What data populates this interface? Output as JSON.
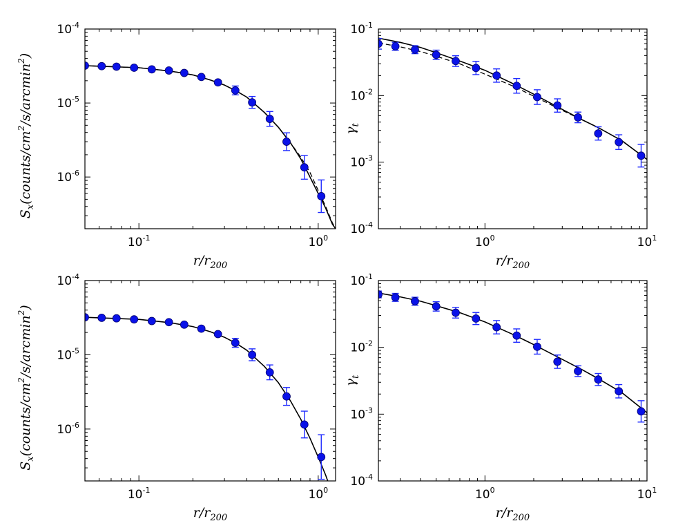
{
  "colors": {
    "points": "#0a12e8",
    "errorbars": "#1f2bff",
    "model": "#000000"
  },
  "chart_data": [
    {
      "type": "scatter",
      "panel": "top-left",
      "xlabel": "r/r_200",
      "ylabel": "S_x(counts/cm^2/s/arcmin^2)",
      "xscale": "log",
      "yscale": "log",
      "xlim": [
        0.05,
        1.25
      ],
      "ylim": [
        2e-07,
        0.0001
      ],
      "xticks": [
        {
          "v": 0.1,
          "b": "10",
          "e": "-1"
        },
        {
          "v": 1,
          "b": "10",
          "e": "0"
        }
      ],
      "yticks": [
        {
          "v": 1e-06,
          "b": "10",
          "e": "-6"
        },
        {
          "v": 1e-05,
          "b": "10",
          "e": "-5"
        },
        {
          "v": 0.0001,
          "b": "10",
          "e": "-4"
        }
      ],
      "points": [
        {
          "x": 0.05,
          "y": 3.2e-05,
          "err": 0
        },
        {
          "x": 0.062,
          "y": 3.15e-05,
          "err": 0
        },
        {
          "x": 0.075,
          "y": 3.1e-05,
          "err": 0
        },
        {
          "x": 0.094,
          "y": 3e-05,
          "err": 0
        },
        {
          "x": 0.118,
          "y": 2.85e-05,
          "err": 0
        },
        {
          "x": 0.147,
          "y": 2.75e-05,
          "err": 0
        },
        {
          "x": 0.179,
          "y": 2.55e-05,
          "err": 0
        },
        {
          "x": 0.223,
          "y": 2.25e-05,
          "err": 0
        },
        {
          "x": 0.276,
          "y": 1.9e-05,
          "err": 0
        },
        {
          "x": 0.345,
          "y": 1.48e-05,
          "err": 0.06
        },
        {
          "x": 0.428,
          "y": 1.02e-05,
          "err": 0.08
        },
        {
          "x": 0.537,
          "y": 6.1e-06,
          "err": 0.1
        },
        {
          "x": 0.666,
          "y": 3e-06,
          "err": 0.12
        },
        {
          "x": 0.837,
          "y": 1.35e-06,
          "err": 0.16
        },
        {
          "x": 1.04,
          "y": 5.5e-07,
          "err": 0.22
        }
      ],
      "model_solid": [
        [
          0.05,
          3.2e-05
        ],
        [
          0.1,
          3e-05
        ],
        [
          0.15,
          2.7e-05
        ],
        [
          0.2,
          2.4e-05
        ],
        [
          0.25,
          2.05e-05
        ],
        [
          0.3,
          1.75e-05
        ],
        [
          0.35,
          1.45e-05
        ],
        [
          0.4,
          1.2e-05
        ],
        [
          0.5,
          7.5e-06
        ],
        [
          0.6,
          4.7e-06
        ],
        [
          0.7,
          2.9e-06
        ],
        [
          0.8,
          1.75e-06
        ],
        [
          0.9,
          1e-06
        ],
        [
          1.0,
          6e-07
        ],
        [
          1.1,
          3.8e-07
        ],
        [
          1.2,
          2.3e-07
        ],
        [
          1.25,
          2e-07
        ]
      ],
      "model_dashed": [
        [
          0.05,
          3.2e-05
        ],
        [
          0.1,
          3e-05
        ],
        [
          0.15,
          2.7e-05
        ],
        [
          0.2,
          2.4e-05
        ],
        [
          0.25,
          2.05e-05
        ],
        [
          0.3,
          1.75e-05
        ],
        [
          0.35,
          1.45e-05
        ],
        [
          0.4,
          1.2e-05
        ],
        [
          0.5,
          7.5e-06
        ],
        [
          0.6,
          4.7e-06
        ],
        [
          0.7,
          2.9e-06
        ],
        [
          0.8,
          1.85e-06
        ],
        [
          0.9,
          1.15e-06
        ],
        [
          1.0,
          6.6e-07
        ],
        [
          1.1,
          4e-07
        ],
        [
          1.2,
          2.4e-07
        ],
        [
          1.25,
          2e-07
        ]
      ]
    },
    {
      "type": "scatter",
      "panel": "top-right",
      "xlabel": "r/r_200",
      "ylabel": "γ_t",
      "xscale": "log",
      "yscale": "log",
      "xlim": [
        0.22,
        10
      ],
      "ylim": [
        0.0001,
        0.1
      ],
      "xticks": [
        {
          "v": 1,
          "b": "10",
          "e": "0"
        },
        {
          "v": 10,
          "b": "10",
          "e": "1"
        }
      ],
      "yticks": [
        {
          "v": 0.0001,
          "b": "10",
          "e": "-4"
        },
        {
          "v": 0.001,
          "b": "10",
          "e": "-3"
        },
        {
          "v": 0.01,
          "b": "10",
          "e": "-2"
        },
        {
          "v": 0.1,
          "b": "10",
          "e": "-1"
        }
      ],
      "points": [
        {
          "x": 0.22,
          "y": 0.06,
          "err": 0.08
        },
        {
          "x": 0.28,
          "y": 0.055,
          "err": 0.06
        },
        {
          "x": 0.37,
          "y": 0.049,
          "err": 0.06
        },
        {
          "x": 0.5,
          "y": 0.041,
          "err": 0.07
        },
        {
          "x": 0.66,
          "y": 0.033,
          "err": 0.08
        },
        {
          "x": 0.88,
          "y": 0.026,
          "err": 0.1
        },
        {
          "x": 1.18,
          "y": 0.02,
          "err": 0.1
        },
        {
          "x": 1.57,
          "y": 0.014,
          "err": 0.11
        },
        {
          "x": 2.1,
          "y": 0.0095,
          "err": 0.11
        },
        {
          "x": 2.8,
          "y": 0.0071,
          "err": 0.1
        },
        {
          "x": 3.75,
          "y": 0.0047,
          "err": 0.08
        },
        {
          "x": 5.0,
          "y": 0.0027,
          "err": 0.1
        },
        {
          "x": 6.7,
          "y": 0.002,
          "err": 0.11
        },
        {
          "x": 9.2,
          "y": 0.00125,
          "err": 0.17
        }
      ],
      "model_solid": [
        [
          0.22,
          0.073
        ],
        [
          0.3,
          0.063
        ],
        [
          0.4,
          0.053
        ],
        [
          0.5,
          0.044
        ],
        [
          0.7,
          0.033
        ],
        [
          1.0,
          0.024
        ],
        [
          1.5,
          0.015
        ],
        [
          2.0,
          0.0105
        ],
        [
          3.0,
          0.0062
        ],
        [
          4.0,
          0.0043
        ],
        [
          5.0,
          0.0033
        ],
        [
          7.0,
          0.0021
        ],
        [
          10.0,
          0.0011
        ]
      ],
      "model_dashed": [
        [
          0.22,
          0.062
        ],
        [
          0.3,
          0.054
        ],
        [
          0.4,
          0.046
        ],
        [
          0.5,
          0.039
        ],
        [
          0.7,
          0.03
        ],
        [
          1.0,
          0.021
        ],
        [
          1.5,
          0.0138
        ],
        [
          2.0,
          0.0098
        ],
        [
          3.0,
          0.006
        ],
        [
          4.0,
          0.0043
        ],
        [
          5.0,
          0.0033
        ],
        [
          7.0,
          0.0021
        ],
        [
          10.0,
          0.0011
        ]
      ]
    },
    {
      "type": "scatter",
      "panel": "bottom-left",
      "xlabel": "r/r_200",
      "ylabel": "S_x(counts/cm^2/s/arcmin^2)",
      "xscale": "log",
      "yscale": "log",
      "xlim": [
        0.05,
        1.25
      ],
      "ylim": [
        2e-07,
        0.0001
      ],
      "xticks": [
        {
          "v": 0.1,
          "b": "10",
          "e": "-1"
        },
        {
          "v": 1,
          "b": "10",
          "e": "0"
        }
      ],
      "yticks": [
        {
          "v": 1e-06,
          "b": "10",
          "e": "-6"
        },
        {
          "v": 1e-05,
          "b": "10",
          "e": "-5"
        },
        {
          "v": 0.0001,
          "b": "10",
          "e": "-4"
        }
      ],
      "points": [
        {
          "x": 0.05,
          "y": 3.2e-05,
          "err": 0
        },
        {
          "x": 0.062,
          "y": 3.15e-05,
          "err": 0
        },
        {
          "x": 0.075,
          "y": 3.1e-05,
          "err": 0
        },
        {
          "x": 0.094,
          "y": 3e-05,
          "err": 0
        },
        {
          "x": 0.118,
          "y": 2.85e-05,
          "err": 0
        },
        {
          "x": 0.147,
          "y": 2.75e-05,
          "err": 0
        },
        {
          "x": 0.179,
          "y": 2.55e-05,
          "err": 0
        },
        {
          "x": 0.223,
          "y": 2.25e-05,
          "err": 0
        },
        {
          "x": 0.276,
          "y": 1.9e-05,
          "err": 0
        },
        {
          "x": 0.345,
          "y": 1.45e-05,
          "err": 0.06
        },
        {
          "x": 0.428,
          "y": 1e-05,
          "err": 0.08
        },
        {
          "x": 0.537,
          "y": 5.8e-06,
          "err": 0.1
        },
        {
          "x": 0.666,
          "y": 2.75e-06,
          "err": 0.12
        },
        {
          "x": 0.837,
          "y": 1.15e-06,
          "err": 0.18
        },
        {
          "x": 1.04,
          "y": 4.2e-07,
          "err": 0.3
        }
      ],
      "model_solid": [
        [
          0.05,
          3.2e-05
        ],
        [
          0.1,
          3e-05
        ],
        [
          0.15,
          2.7e-05
        ],
        [
          0.2,
          2.4e-05
        ],
        [
          0.25,
          2.05e-05
        ],
        [
          0.3,
          1.72e-05
        ],
        [
          0.35,
          1.42e-05
        ],
        [
          0.4,
          1.15e-05
        ],
        [
          0.5,
          7e-06
        ],
        [
          0.6,
          4.2e-06
        ],
        [
          0.7,
          2.4e-06
        ],
        [
          0.8,
          1.35e-06
        ],
        [
          0.9,
          7.5e-07
        ],
        [
          1.0,
          4.2e-07
        ],
        [
          1.1,
          2.4e-07
        ],
        [
          1.13,
          2e-07
        ]
      ],
      "model_dashed": []
    },
    {
      "type": "scatter",
      "panel": "bottom-right",
      "xlabel": "r/r_200",
      "ylabel": "γ_t",
      "xscale": "log",
      "yscale": "log",
      "xlim": [
        0.22,
        10
      ],
      "ylim": [
        0.0001,
        0.1
      ],
      "xticks": [
        {
          "v": 1,
          "b": "10",
          "e": "0"
        },
        {
          "v": 10,
          "b": "10",
          "e": "1"
        }
      ],
      "yticks": [
        {
          "v": 0.0001,
          "b": "10",
          "e": "-4"
        },
        {
          "v": 0.001,
          "b": "10",
          "e": "-3"
        },
        {
          "v": 0.01,
          "b": "10",
          "e": "-2"
        },
        {
          "v": 0.1,
          "b": "10",
          "e": "-1"
        }
      ],
      "points": [
        {
          "x": 0.22,
          "y": 0.062,
          "err": 0.05
        },
        {
          "x": 0.28,
          "y": 0.056,
          "err": 0.06
        },
        {
          "x": 0.37,
          "y": 0.049,
          "err": 0.06
        },
        {
          "x": 0.5,
          "y": 0.041,
          "err": 0.07
        },
        {
          "x": 0.66,
          "y": 0.033,
          "err": 0.08
        },
        {
          "x": 0.88,
          "y": 0.027,
          "err": 0.09
        },
        {
          "x": 1.18,
          "y": 0.02,
          "err": 0.1
        },
        {
          "x": 1.57,
          "y": 0.015,
          "err": 0.1
        },
        {
          "x": 2.1,
          "y": 0.0102,
          "err": 0.11
        },
        {
          "x": 2.8,
          "y": 0.0061,
          "err": 0.1
        },
        {
          "x": 3.75,
          "y": 0.0044,
          "err": 0.08
        },
        {
          "x": 5.0,
          "y": 0.0033,
          "err": 0.09
        },
        {
          "x": 6.7,
          "y": 0.0022,
          "err": 0.1
        },
        {
          "x": 9.2,
          "y": 0.0011,
          "err": 0.16
        }
      ],
      "model_solid": [
        [
          0.22,
          0.065
        ],
        [
          0.3,
          0.057
        ],
        [
          0.4,
          0.049
        ],
        [
          0.5,
          0.042
        ],
        [
          0.7,
          0.033
        ],
        [
          1.0,
          0.024
        ],
        [
          1.5,
          0.0155
        ],
        [
          2.0,
          0.011
        ],
        [
          3.0,
          0.0066
        ],
        [
          4.0,
          0.0046
        ],
        [
          5.0,
          0.0034
        ],
        [
          7.0,
          0.0021
        ],
        [
          10.0,
          0.00105
        ]
      ],
      "model_dashed": []
    }
  ]
}
